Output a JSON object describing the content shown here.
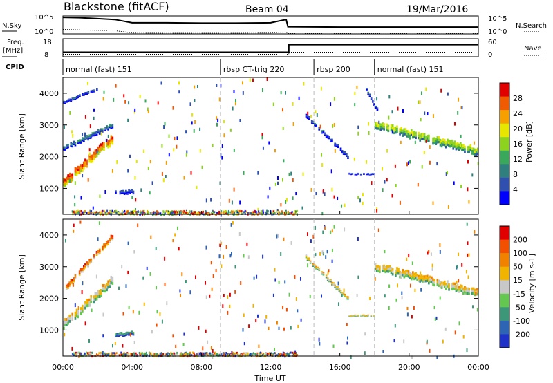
{
  "header": {
    "station": "Blackstone (fitACF)",
    "beam": "Beam 04",
    "date": "19/Mar/2016"
  },
  "chart_data": [
    {
      "type": "line",
      "name": "noise-panel",
      "left_label": "N.Sky",
      "right_label": "N.Search",
      "left_ticks": [
        "10^5",
        "10^0"
      ],
      "right_ticks": [
        "10^5",
        "10^0"
      ],
      "x": [
        0,
        1,
        2,
        3,
        4,
        6,
        8,
        10,
        12,
        12.9,
        13.0,
        16,
        20,
        24
      ],
      "nsky_level": [
        0.92,
        0.9,
        0.85,
        0.8,
        0.62,
        0.62,
        0.6,
        0.6,
        0.62,
        0.8,
        0.4,
        0.38,
        0.38,
        0.38
      ],
      "nsearch_level": [
        0.25,
        0.22,
        0.2,
        0.18,
        0.05,
        0.04,
        0.04,
        0.04,
        0.05,
        0.1,
        0.02,
        0.02,
        0.02,
        0.02
      ],
      "ylim": [
        0,
        1
      ]
    },
    {
      "type": "line",
      "name": "freq-nave-panel",
      "left_label_1": "Freq.",
      "left_label_2": "[MHz]",
      "right_label": "Nave",
      "left_ticks": [
        "18",
        "8"
      ],
      "right_ticks": [
        "60",
        "0"
      ],
      "freq_x": [
        0,
        13.05,
        13.05,
        24
      ],
      "freq_mhz": [
        10.5,
        10.5,
        14.7,
        14.7
      ],
      "nave_x": [
        0,
        13.05,
        13.05,
        24
      ],
      "nave": [
        8,
        8,
        15,
        15
      ],
      "ylim_freq": [
        8,
        18
      ],
      "ylim_nave": [
        0,
        60
      ]
    },
    {
      "type": "table",
      "name": "cpid-panel",
      "label": "CPID",
      "modes": [
        {
          "start": 0,
          "end": 9.1,
          "label": "normal (fast) 151"
        },
        {
          "start": 9.1,
          "end": 14.5,
          "label": "rbsp CT-trig 220"
        },
        {
          "start": 14.5,
          "end": 18.0,
          "label": "rbsp 200"
        },
        {
          "start": 18.0,
          "end": 24,
          "label": "normal (fast) 151"
        }
      ]
    },
    {
      "type": "heatmap",
      "name": "power-panel",
      "ylabel": "Slant Range [km]",
      "y_ticks": [
        "1000",
        "2000",
        "3000",
        "4000"
      ],
      "ylim": [
        180,
        4500
      ],
      "xlim": [
        0,
        24
      ],
      "colorbar_label": "Power [dB]",
      "colorbar_ticks": [
        "4",
        "8",
        "12",
        "16",
        "20",
        "24",
        "28"
      ],
      "colors": [
        "#0000ff",
        "#3050b0",
        "#2f7f7f",
        "#3aa85a",
        "#8cd21e",
        "#e6e600",
        "#f5a000",
        "#f05a00",
        "#e00000"
      ],
      "bands": [
        {
          "t0": 0.0,
          "t1": 2.9,
          "r0": 1150,
          "r1": 2600,
          "w": 260,
          "v": 0.75
        },
        {
          "t0": 0.0,
          "t1": 2.9,
          "r0": 2250,
          "r1": 3000,
          "w": 140,
          "v": 0.2
        },
        {
          "t0": 0.0,
          "t1": 2.0,
          "r0": 3700,
          "r1": 4150,
          "w": 90,
          "v": 0.1
        },
        {
          "t0": 3.0,
          "t1": 4.1,
          "r0": 850,
          "r1": 900,
          "w": 120,
          "v": 0.05
        },
        {
          "t0": 14.0,
          "t1": 16.5,
          "r0": 3300,
          "r1": 1950,
          "w": 110,
          "v": 0.08
        },
        {
          "t0": 16.5,
          "t1": 18.0,
          "r0": 1450,
          "r1": 1450,
          "w": 60,
          "v": 0.08
        },
        {
          "t0": 17.5,
          "t1": 18.2,
          "r0": 4100,
          "r1": 3400,
          "w": 100,
          "v": 0.1
        },
        {
          "t0": 18.0,
          "t1": 24.0,
          "r0": 3000,
          "r1": 2150,
          "w": 230,
          "v": 0.45
        }
      ],
      "ground_band": {
        "t0": 0.5,
        "t1": 13.5,
        "r0": 200,
        "r1": 320
      }
    },
    {
      "type": "heatmap",
      "name": "velocity-panel",
      "ylabel": "Slant Range [km]",
      "y_ticks": [
        "1000",
        "2000",
        "3000",
        "4000"
      ],
      "ylim": [
        180,
        4500
      ],
      "xlim": [
        0,
        24
      ],
      "colorbar_label": "Velocity [m s-1]",
      "colorbar_ticks": [
        "200",
        "100",
        "50",
        "15",
        "-15",
        "-50",
        "-100",
        "-200"
      ],
      "colors": [
        "#1e32c8",
        "#2d64b4",
        "#3c9678",
        "#64c850",
        "#c8c8c8",
        "#f0b400",
        "#f08200",
        "#f05000",
        "#e00000"
      ],
      "bands": [
        {
          "t0": 0.0,
          "t1": 2.9,
          "r0": 1150,
          "r1": 2600,
          "w": 260,
          "v": 0.5
        },
        {
          "t0": 0.0,
          "t1": 2.9,
          "r0": 2250,
          "r1": 4000,
          "w": 160,
          "v": 0.72
        },
        {
          "t0": 3.0,
          "t1": 4.1,
          "r0": 850,
          "r1": 900,
          "w": 120,
          "v": 0.2
        },
        {
          "t0": 14.0,
          "t1": 16.5,
          "r0": 3300,
          "r1": 1950,
          "w": 110,
          "v": 0.5
        },
        {
          "t0": 16.5,
          "t1": 18.0,
          "r0": 1450,
          "r1": 1450,
          "w": 60,
          "v": 0.5
        },
        {
          "t0": 18.0,
          "t1": 24.0,
          "r0": 3000,
          "r1": 2150,
          "w": 230,
          "v": 0.5
        }
      ],
      "ground_band": {
        "t0": 0.5,
        "t1": 13.5,
        "r0": 200,
        "r1": 320
      }
    }
  ],
  "x_axis": {
    "label": "Time UT",
    "ticks": [
      "00:00",
      "04:00",
      "08:00",
      "12:00",
      "16:00",
      "20:00",
      "00:00"
    ],
    "tick_hours": [
      0,
      4,
      8,
      12,
      16,
      20,
      24
    ],
    "mode_boundaries": [
      9.1,
      14.5,
      18.0
    ]
  }
}
